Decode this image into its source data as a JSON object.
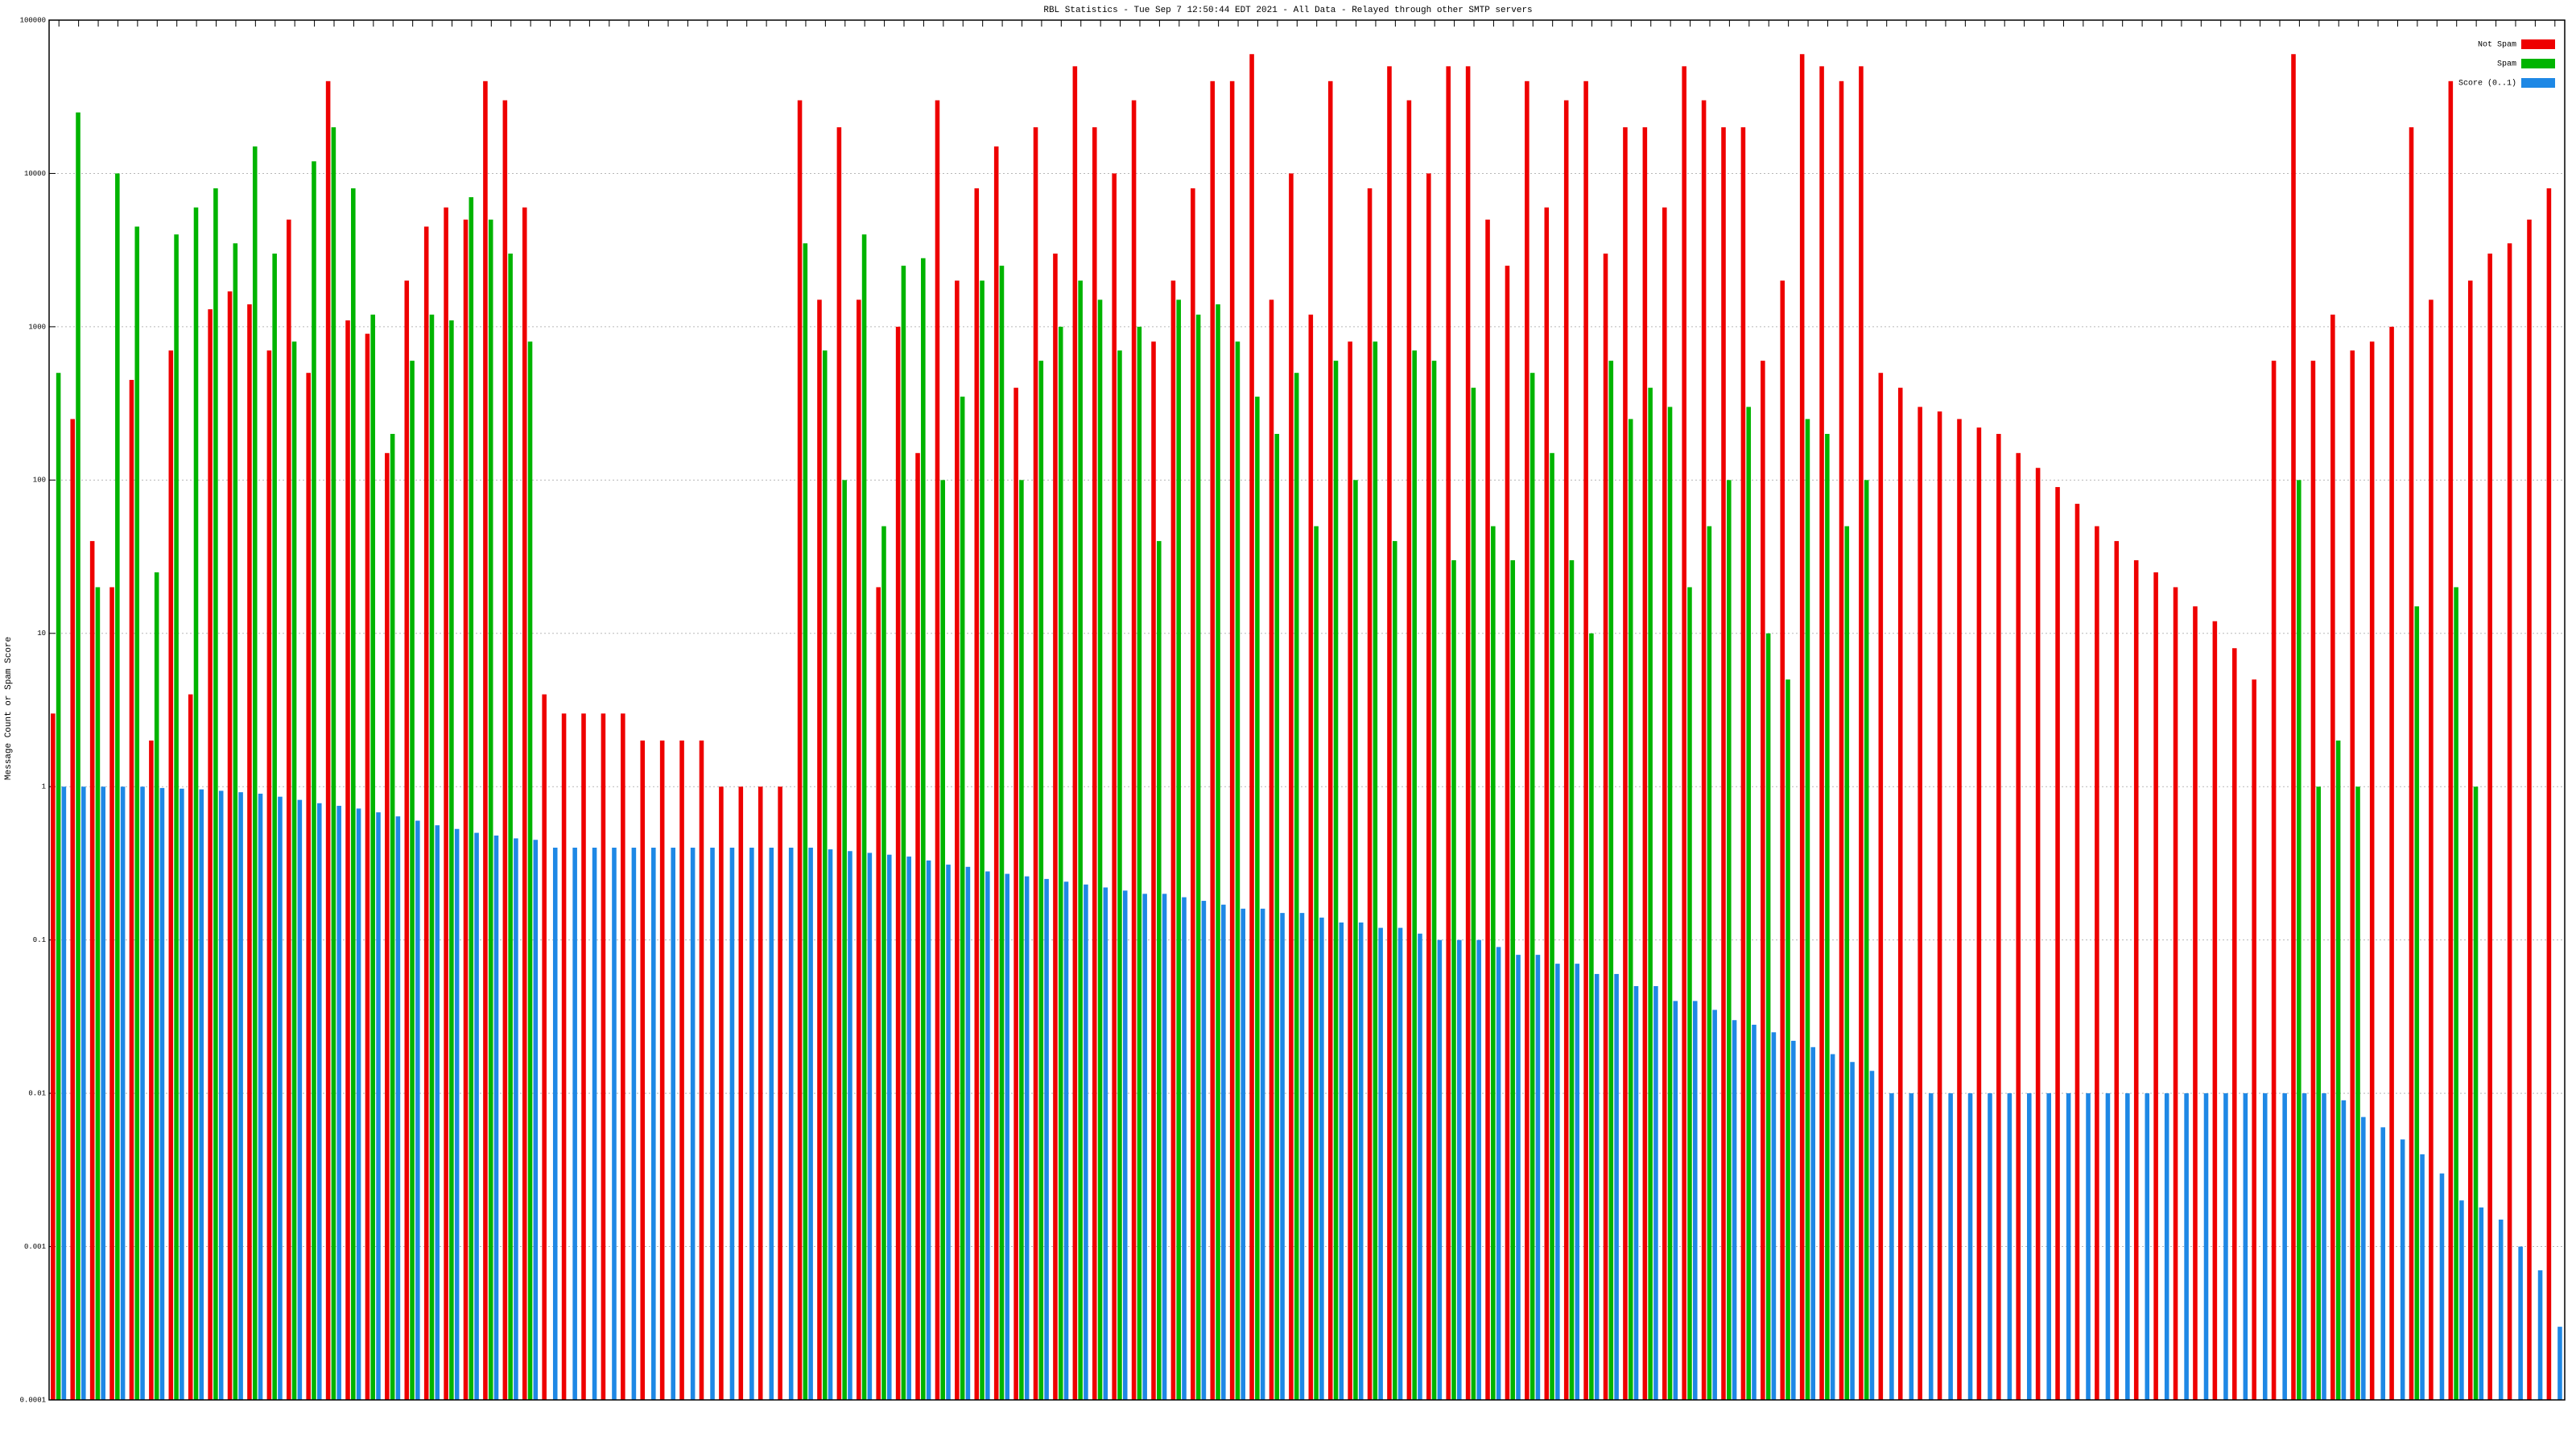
{
  "chart_data": {
    "type": "bar",
    "title": "RBL Statistics - Tue Sep  7 12:50:44 EDT 2021 - All Data - Relayed through other SMTP servers",
    "y_label": "Message Count or Spam Score",
    "log_scale": true,
    "grid": true,
    "legend": "top-right",
    "ylim": [
      0.0001,
      100000
    ],
    "yticks": [
      0.0001,
      0.001,
      0.01,
      0.1,
      1,
      10,
      100,
      1000,
      10000,
      100000
    ],
    "categories": [
      null,
      null,
      null,
      null,
      null,
      null,
      null,
      null,
      null,
      null,
      null,
      null,
      null,
      null,
      null,
      null,
      null,
      null,
      null,
      null,
      null,
      null,
      null,
      null,
      null,
      null,
      null,
      null,
      null,
      null,
      null,
      null,
      null,
      null,
      null,
      null,
      null,
      null,
      null,
      null,
      null,
      null,
      null,
      null,
      null,
      null,
      null,
      null,
      null,
      null,
      null,
      null,
      null,
      null,
      null,
      null,
      null,
      null,
      null,
      null,
      null,
      null,
      null,
      null,
      null,
      null,
      null,
      null,
      null,
      null,
      null,
      null,
      null,
      null,
      null,
      null,
      null,
      null,
      null,
      null,
      null,
      null,
      null,
      null,
      null,
      null,
      null,
      null,
      null,
      null,
      null,
      null,
      null,
      null,
      null,
      null,
      null,
      null,
      null,
      null,
      null,
      null,
      null,
      null,
      null,
      null,
      null,
      null,
      null,
      null,
      null,
      null,
      null,
      null,
      null,
      null,
      null,
      null,
      null,
      null,
      null,
      null,
      null,
      null,
      null,
      null,
      null,
      null
    ],
    "series": [
      {
        "name": "Not Spam",
        "color": "#ee0000",
        "values": [
          3,
          250,
          40,
          20,
          450,
          2,
          700,
          4,
          1300,
          1700,
          1400,
          700,
          5000,
          500,
          40000,
          1100,
          900,
          150,
          2000,
          4500,
          6000,
          5000,
          40000,
          30000,
          6000,
          4,
          3,
          3,
          3,
          3,
          2,
          2,
          2,
          2,
          1,
          1,
          1,
          1,
          30000,
          1500,
          20000,
          1500,
          20,
          1000,
          150,
          30000,
          2000,
          8000,
          15000,
          400,
          20000,
          3000,
          50000,
          20000,
          10000,
          30000,
          800,
          2000,
          8000,
          40000,
          40000,
          60000,
          1500,
          10000,
          1200,
          40000,
          800,
          8000,
          50000,
          30000,
          10000,
          50000,
          50000,
          5000,
          2500,
          40000,
          6000,
          30000,
          40000,
          3000,
          20000,
          20000,
          6000,
          50000,
          30000,
          20000,
          20000,
          600,
          2000,
          60000,
          50000,
          40000,
          50000,
          500,
          400,
          300,
          280,
          250,
          220,
          200,
          150,
          120,
          90,
          70,
          50,
          40,
          30,
          25,
          20,
          15,
          12,
          8,
          5,
          600,
          60000,
          600,
          1200,
          700,
          800,
          1000,
          20000,
          1500,
          40000,
          2000,
          3000,
          3500,
          5000,
          8000
        ]
      },
      {
        "name": "Spam",
        "color": "#00b400",
        "values": [
          500,
          25000,
          20,
          10000,
          4500,
          25,
          4000,
          6000,
          8000,
          3500,
          15000,
          3000,
          800,
          12000,
          20000,
          8000,
          1200,
          200,
          600,
          1200,
          1100,
          7000,
          5000,
          3000,
          800,
          null,
          null,
          null,
          null,
          null,
          null,
          null,
          null,
          null,
          null,
          null,
          null,
          null,
          3500,
          700,
          100,
          4000,
          50,
          2500,
          2800,
          100,
          350,
          2000,
          2500,
          100,
          600,
          1000,
          2000,
          1500,
          700,
          1000,
          40,
          1500,
          1200,
          1400,
          800,
          350,
          200,
          500,
          50,
          600,
          100,
          800,
          40,
          700,
          600,
          30,
          400,
          50,
          30,
          500,
          150,
          30,
          10,
          600,
          250,
          400,
          300,
          20,
          50,
          100,
          300,
          10,
          5,
          250,
          200,
          50,
          100,
          null,
          null,
          null,
          null,
          null,
          null,
          null,
          null,
          null,
          null,
          null,
          null,
          null,
          null,
          null,
          null,
          null,
          null,
          null,
          null,
          null,
          100,
          1,
          2,
          1,
          null,
          null,
          15,
          null,
          20,
          1,
          null,
          null,
          null,
          null
        ]
      },
      {
        "name": "Score (0..1)",
        "color": "#1e88e5",
        "values": [
          1,
          1,
          1,
          1,
          1,
          0.98,
          0.97,
          0.96,
          0.94,
          0.92,
          0.9,
          0.86,
          0.82,
          0.78,
          0.75,
          0.72,
          0.68,
          0.64,
          0.6,
          0.56,
          0.53,
          0.5,
          0.48,
          0.46,
          0.45,
          0.4,
          0.4,
          0.4,
          0.4,
          0.4,
          0.4,
          0.4,
          0.4,
          0.4,
          0.4,
          0.4,
          0.4,
          0.4,
          0.4,
          0.39,
          0.38,
          0.37,
          0.36,
          0.35,
          0.33,
          0.31,
          0.3,
          0.28,
          0.27,
          0.26,
          0.25,
          0.24,
          0.23,
          0.22,
          0.21,
          0.2,
          0.2,
          0.19,
          0.18,
          0.17,
          0.16,
          0.16,
          0.15,
          0.15,
          0.14,
          0.13,
          0.13,
          0.12,
          0.12,
          0.11,
          0.1,
          0.1,
          0.1,
          0.09,
          0.08,
          0.08,
          0.07,
          0.07,
          0.06,
          0.06,
          0.05,
          0.05,
          0.04,
          0.04,
          0.035,
          0.03,
          0.028,
          0.025,
          0.022,
          0.02,
          0.018,
          0.016,
          0.014,
          0.01,
          0.01,
          0.01,
          0.01,
          0.01,
          0.01,
          0.01,
          0.01,
          0.01,
          0.01,
          0.01,
          0.01,
          0.01,
          0.01,
          0.01,
          0.01,
          0.01,
          0.01,
          0.01,
          0.01,
          0.01,
          0.01,
          0.01,
          0.009,
          0.007,
          0.006,
          0.005,
          0.004,
          0.003,
          0.002,
          0.0018,
          0.0015,
          0.001,
          0.0007,
          0.0003
        ]
      }
    ]
  }
}
